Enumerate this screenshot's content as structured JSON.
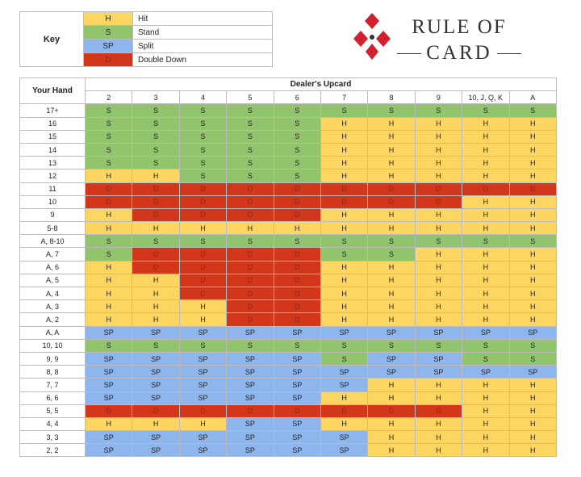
{
  "colors": {
    "H": "#fdd561",
    "S": "#92c46e",
    "SP": "#8fb6ec",
    "D": "#d2361b"
  },
  "key": {
    "title": "Key",
    "items": [
      {
        "code": "H",
        "label": "Hit"
      },
      {
        "code": "S",
        "label": "Stand"
      },
      {
        "code": "SP",
        "label": "Split"
      },
      {
        "code": "D",
        "label": "Double Down"
      }
    ]
  },
  "logo": {
    "line1": "RULE OF",
    "line2": "CARD",
    "icon": "card-suit-logo-icon"
  },
  "table": {
    "hand_header": "Your Hand",
    "upcard_header": "Dealer's Upcard",
    "upcards": [
      "2",
      "3",
      "4",
      "5",
      "6",
      "7",
      "8",
      "9",
      "10, J, Q, K",
      "A"
    ],
    "rows": [
      {
        "hand": "17+",
        "cells": [
          "S",
          "S",
          "S",
          "S",
          "S",
          "S",
          "S",
          "S",
          "S",
          "S"
        ]
      },
      {
        "hand": "16",
        "cells": [
          "S",
          "S",
          "S",
          "S",
          "S",
          "H",
          "H",
          "H",
          "H",
          "H"
        ]
      },
      {
        "hand": "15",
        "cells": [
          "S",
          "S",
          "S",
          "S",
          "S",
          "H",
          "H",
          "H",
          "H",
          "H"
        ]
      },
      {
        "hand": "14",
        "cells": [
          "S",
          "S",
          "S",
          "S",
          "S",
          "H",
          "H",
          "H",
          "H",
          "H"
        ]
      },
      {
        "hand": "13",
        "cells": [
          "S",
          "S",
          "S",
          "S",
          "S",
          "H",
          "H",
          "H",
          "H",
          "H"
        ]
      },
      {
        "hand": "12",
        "cells": [
          "H",
          "H",
          "S",
          "S",
          "S",
          "H",
          "H",
          "H",
          "H",
          "H"
        ]
      },
      {
        "hand": "11",
        "cells": [
          "D",
          "D",
          "D",
          "D",
          "D",
          "D",
          "D",
          "D",
          "D",
          "D"
        ]
      },
      {
        "hand": "10",
        "cells": [
          "D",
          "D",
          "D",
          "D",
          "D",
          "D",
          "D",
          "D",
          "H",
          "H"
        ]
      },
      {
        "hand": "9",
        "cells": [
          "H",
          "D",
          "D",
          "D",
          "D",
          "H",
          "H",
          "H",
          "H",
          "H"
        ]
      },
      {
        "hand": "5-8",
        "cells": [
          "H",
          "H",
          "H",
          "H",
          "H",
          "H",
          "H",
          "H",
          "H",
          "H"
        ]
      },
      {
        "hand": "A, 8-10",
        "cells": [
          "S",
          "S",
          "S",
          "S",
          "S",
          "S",
          "S",
          "S",
          "S",
          "S"
        ]
      },
      {
        "hand": "A, 7",
        "cells": [
          "S",
          "D",
          "D",
          "D",
          "D",
          "S",
          "S",
          "H",
          "H",
          "H"
        ]
      },
      {
        "hand": "A, 6",
        "cells": [
          "H",
          "D",
          "D",
          "D",
          "D",
          "H",
          "H",
          "H",
          "H",
          "H"
        ]
      },
      {
        "hand": "A, 5",
        "cells": [
          "H",
          "H",
          "D",
          "D",
          "D",
          "H",
          "H",
          "H",
          "H",
          "H"
        ]
      },
      {
        "hand": "A, 4",
        "cells": [
          "H",
          "H",
          "D",
          "D",
          "D",
          "H",
          "H",
          "H",
          "H",
          "H"
        ]
      },
      {
        "hand": "A, 3",
        "cells": [
          "H",
          "H",
          "H",
          "D",
          "D",
          "H",
          "H",
          "H",
          "H",
          "H"
        ]
      },
      {
        "hand": "A, 2",
        "cells": [
          "H",
          "H",
          "H",
          "D",
          "D",
          "H",
          "H",
          "H",
          "H",
          "H"
        ]
      },
      {
        "hand": "A, A",
        "cells": [
          "SP",
          "SP",
          "SP",
          "SP",
          "SP",
          "SP",
          "SP",
          "SP",
          "SP",
          "SP"
        ]
      },
      {
        "hand": "10, 10",
        "cells": [
          "S",
          "S",
          "S",
          "S",
          "S",
          "S",
          "S",
          "S",
          "S",
          "S"
        ]
      },
      {
        "hand": "9, 9",
        "cells": [
          "SP",
          "SP",
          "SP",
          "SP",
          "SP",
          "S",
          "SP",
          "SP",
          "S",
          "S"
        ]
      },
      {
        "hand": "8, 8",
        "cells": [
          "SP",
          "SP",
          "SP",
          "SP",
          "SP",
          "SP",
          "SP",
          "SP",
          "SP",
          "SP"
        ]
      },
      {
        "hand": "7, 7",
        "cells": [
          "SP",
          "SP",
          "SP",
          "SP",
          "SP",
          "SP",
          "H",
          "H",
          "H",
          "H"
        ]
      },
      {
        "hand": "6, 6",
        "cells": [
          "SP",
          "SP",
          "SP",
          "SP",
          "SP",
          "H",
          "H",
          "H",
          "H",
          "H"
        ]
      },
      {
        "hand": "5, 5",
        "cells": [
          "D",
          "D",
          "D",
          "D",
          "D",
          "D",
          "D",
          "D",
          "H",
          "H"
        ]
      },
      {
        "hand": "4, 4",
        "cells": [
          "H",
          "H",
          "H",
          "SP",
          "SP",
          "H",
          "H",
          "H",
          "H",
          "H"
        ]
      },
      {
        "hand": "3, 3",
        "cells": [
          "SP",
          "SP",
          "SP",
          "SP",
          "SP",
          "SP",
          "H",
          "H",
          "H",
          "H"
        ]
      },
      {
        "hand": "2, 2",
        "cells": [
          "SP",
          "SP",
          "SP",
          "SP",
          "SP",
          "SP",
          "H",
          "H",
          "H",
          "H"
        ]
      }
    ]
  }
}
